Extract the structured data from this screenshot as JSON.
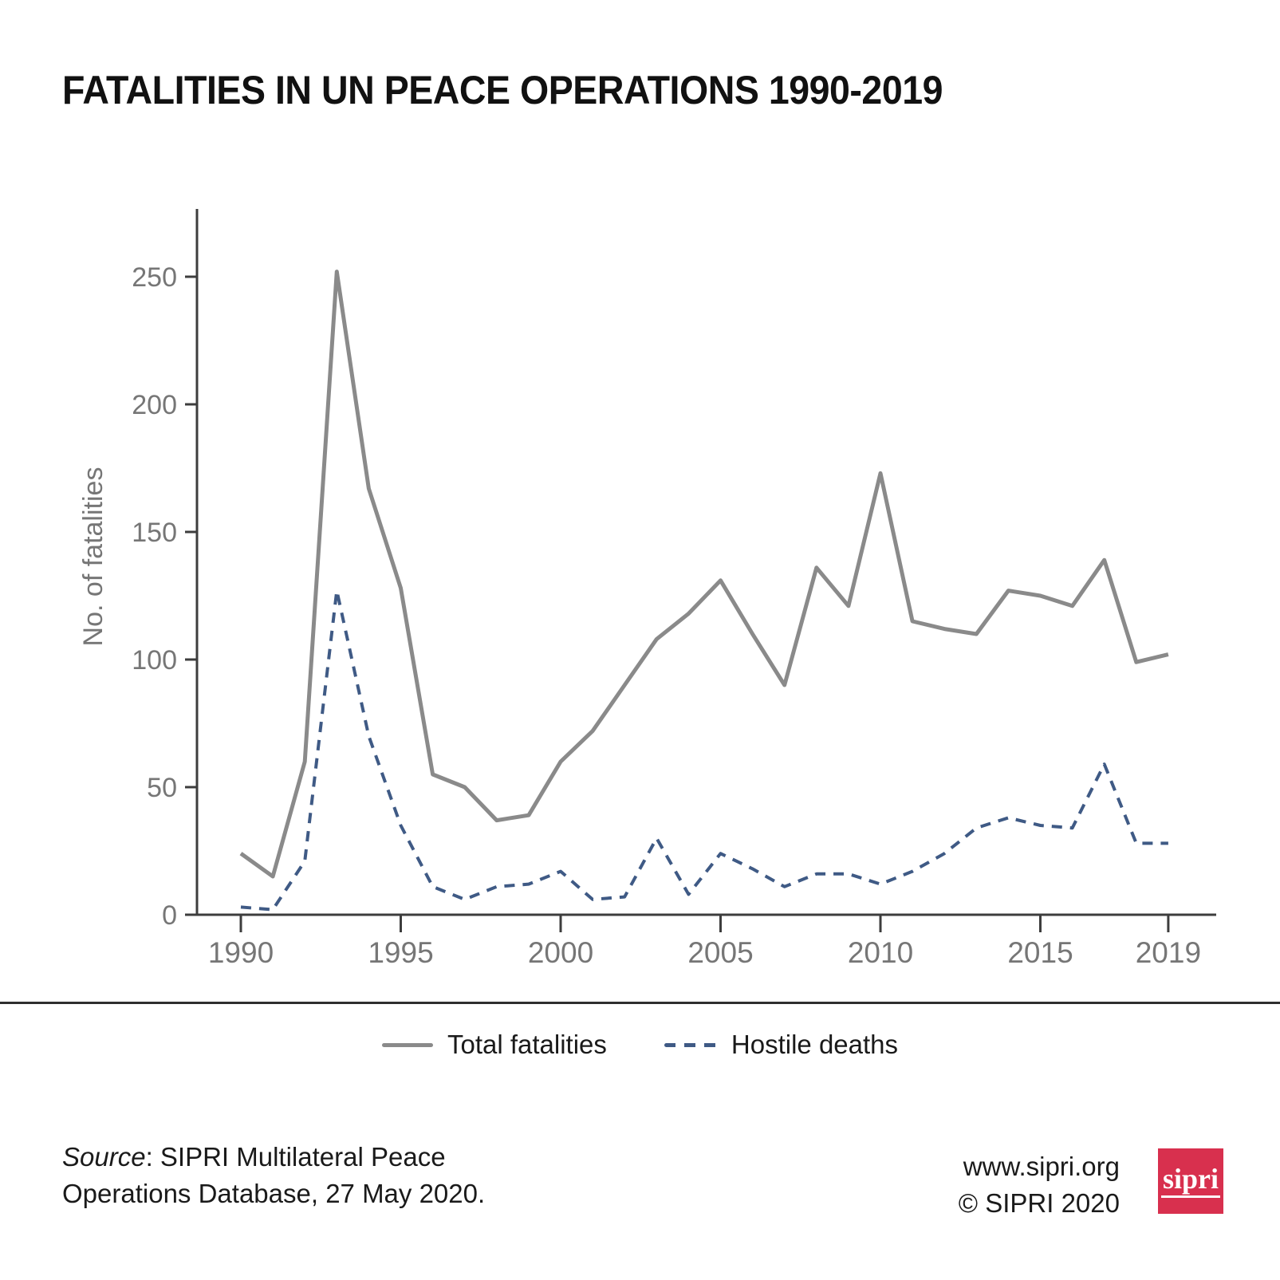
{
  "title": "FATALITIES IN UN PEACE OPERATIONS 1990-2019",
  "chart_data": {
    "type": "line",
    "title": "FATALITIES IN UN PEACE OPERATIONS 1990-2019",
    "xlabel": "",
    "ylabel": "No. of fatalities",
    "x": [
      1990,
      1991,
      1992,
      1993,
      1994,
      1995,
      1996,
      1997,
      1998,
      1999,
      2000,
      2001,
      2002,
      2003,
      2004,
      2005,
      2006,
      2007,
      2008,
      2009,
      2010,
      2011,
      2012,
      2013,
      2014,
      2015,
      2016,
      2017,
      2018,
      2019
    ],
    "series": [
      {
        "name": "Total fatalities",
        "style": "solid",
        "color": "#8a8a8a",
        "values": [
          24,
          15,
          60,
          252,
          167,
          128,
          55,
          50,
          37,
          39,
          60,
          72,
          90,
          108,
          118,
          131,
          110,
          90,
          136,
          121,
          173,
          115,
          112,
          110,
          127,
          125,
          121,
          139,
          99,
          102
        ]
      },
      {
        "name": "Hostile deaths",
        "style": "dashed",
        "color": "#3f5a85",
        "values": [
          3,
          2,
          21,
          127,
          70,
          35,
          11,
          6,
          11,
          12,
          17,
          6,
          7,
          30,
          8,
          24,
          18,
          11,
          16,
          16,
          12,
          17,
          24,
          34,
          38,
          35,
          34,
          59,
          28,
          28
        ]
      }
    ],
    "x_ticks": [
      1990,
      1995,
      2000,
      2005,
      2010,
      2015,
      2019
    ],
    "y_ticks": [
      0,
      50,
      100,
      150,
      200,
      250
    ],
    "ylim": [
      0,
      277
    ],
    "grid": false,
    "legend_position": "bottom",
    "colors": {
      "axis": "#3d3d3d",
      "tick_label": "#767676",
      "divider": "#2e2e2e",
      "logo_red": "#d8304e"
    }
  },
  "footer": {
    "source_word": "Source",
    "source_rest": ": SIPRI Multilateral Peace",
    "source_line2": "Operations Database, 27 May 2020.",
    "website": "www.sipri.org",
    "copyright": "© SIPRI 2020",
    "logo_text": "sipri"
  }
}
